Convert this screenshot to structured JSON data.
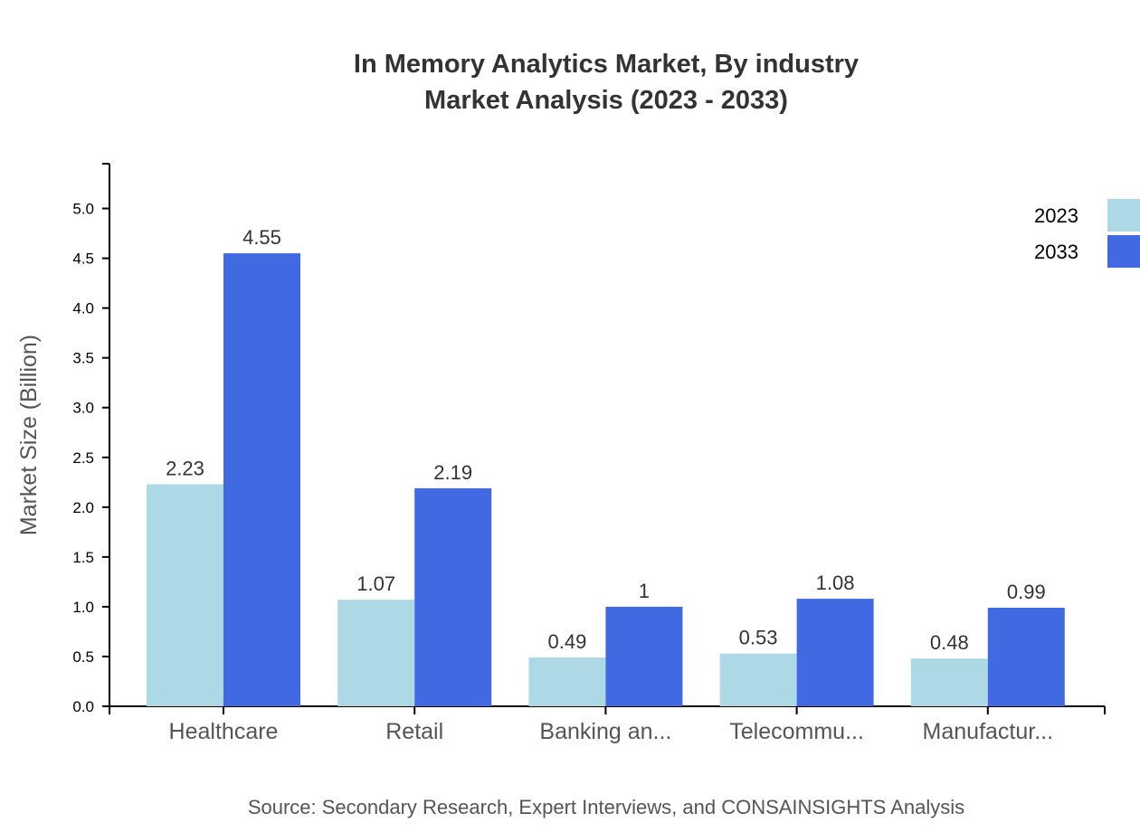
{
  "chart_data": {
    "type": "bar",
    "title": "In Memory Analytics Market, By industry",
    "subtitle": "Market Analysis (2023 - 2033)",
    "xlabel": "",
    "ylabel": "Market Size (Billion)",
    "ylim": [
      0,
      5.45
    ],
    "yticks": [
      "0.0",
      "0.5",
      "1.0",
      "1.5",
      "2.0",
      "2.5",
      "3.0",
      "3.5",
      "4.0",
      "4.5",
      "5.0"
    ],
    "categories": [
      "Healthcare",
      "Retail",
      "Banking an...",
      "Telecommu...",
      "Manufactur..."
    ],
    "series": [
      {
        "name": "2023",
        "color": "#add8e6",
        "values": [
          2.23,
          1.07,
          0.49,
          0.53,
          0.48
        ],
        "labels": [
          "2.23",
          "1.07",
          "0.49",
          "0.53",
          "0.48"
        ]
      },
      {
        "name": "2033",
        "color": "#4169e1",
        "values": [
          4.55,
          2.19,
          1,
          1.08,
          0.99
        ],
        "labels": [
          "4.55",
          "2.19",
          "1",
          "1.08",
          "0.99"
        ]
      }
    ],
    "grid": false,
    "legend": "top-right",
    "source": "Source: Secondary Research, Expert Interviews, and CONSAINSIGHTS Analysis"
  }
}
